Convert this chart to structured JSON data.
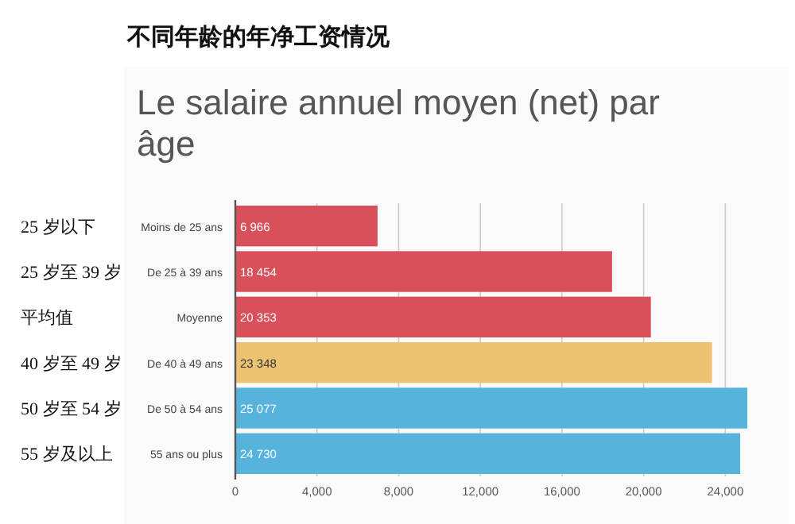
{
  "chart_data": {
    "type": "bar",
    "orientation": "horizontal",
    "title": "不同年龄的年净工资情况",
    "subtitle": "Le salaire annuel moyen (net) par âge",
    "categories": [
      "Moins de 25 ans",
      "De 25 à 39 ans",
      "Moyenne",
      "De 40 à 49 ans",
      "De 50 à 54 ans",
      "55 ans ou plus"
    ],
    "values": [
      6966,
      18454,
      20353,
      23348,
      25077,
      24730
    ],
    "colors": [
      "#d9505a",
      "#d9505a",
      "#d9505a",
      "#ebc371",
      "#56b4dc",
      "#56b4dc"
    ],
    "value_labels": [
      "6 966",
      "18 454",
      "20 353",
      "23 348",
      "25 077",
      "24 730"
    ],
    "xlim": [
      0,
      25077
    ],
    "xticks": [
      0,
      {
        "value": 4000,
        "label": "4,000"
      },
      {
        "value": 8000,
        "label": "8,000"
      },
      {
        "value": 12000,
        "label": "12,000"
      },
      {
        "value": 16000,
        "label": "16,000"
      },
      {
        "value": 20000,
        "label": "20,000"
      },
      {
        "value": 24000,
        "label": "24,000"
      }
    ],
    "grid": "x",
    "annotations": [
      "25 岁以下",
      "25 岁至 39 岁",
      "平均值",
      "40 岁至 49 岁",
      "50 岁至 54 岁",
      "55 岁及以上"
    ]
  }
}
